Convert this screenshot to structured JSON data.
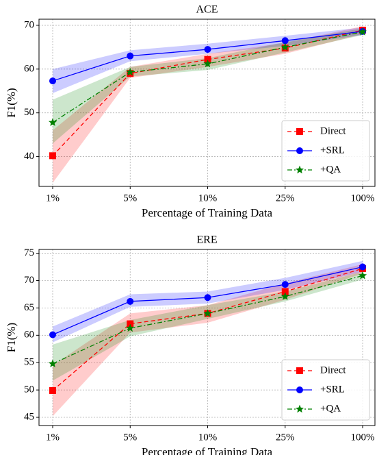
{
  "chart_data": [
    {
      "type": "line",
      "title": "ACE",
      "x_label": "Percentage of Training Data",
      "y_label": "F1(%)",
      "categories": [
        "1%",
        "5%",
        "10%",
        "25%",
        "100%"
      ],
      "ylim": [
        33.2,
        71.4
      ],
      "yticks": [
        40,
        50,
        60,
        70
      ],
      "grid": true,
      "legend": "lower right",
      "series": [
        {
          "name": "Direct",
          "color": "#ff0000",
          "marker": "square",
          "linestyle": "dashed",
          "values": [
            40.2,
            59.0,
            62.2,
            64.8,
            68.9
          ],
          "lower": [
            34.0,
            58.0,
            60.5,
            63.5,
            68.0
          ],
          "upper": [
            46.0,
            60.5,
            63.5,
            66.0,
            69.8
          ]
        },
        {
          "name": "+SRL",
          "color": "#0000ff",
          "marker": "circle",
          "linestyle": "solid",
          "values": [
            57.3,
            63.0,
            64.5,
            66.5,
            68.6
          ],
          "lower": [
            54.5,
            61.8,
            63.5,
            65.3,
            67.8
          ],
          "upper": [
            60.0,
            64.3,
            65.8,
            67.6,
            69.5
          ]
        },
        {
          "name": "+QA",
          "color": "#008000",
          "marker": "star",
          "linestyle": "dashdot",
          "values": [
            47.8,
            59.3,
            61.2,
            65.0,
            68.5
          ],
          "lower": [
            43.0,
            58.3,
            59.8,
            63.8,
            67.8
          ],
          "upper": [
            53.0,
            60.5,
            62.5,
            66.2,
            69.3
          ]
        }
      ]
    },
    {
      "type": "line",
      "title": "ERE",
      "x_label": "Percentage of Training Data",
      "y_label": "F1(%)",
      "categories": [
        "1%",
        "5%",
        "10%",
        "25%",
        "100%"
      ],
      "ylim": [
        43.5,
        75.7
      ],
      "yticks": [
        45,
        50,
        55,
        60,
        65,
        70,
        75
      ],
      "grid": true,
      "legend": "lower right",
      "series": [
        {
          "name": "Direct",
          "color": "#ff0000",
          "marker": "square",
          "linestyle": "dashed",
          "values": [
            49.9,
            62.1,
            64.0,
            68.0,
            72.2
          ],
          "lower": [
            45.2,
            60.5,
            62.3,
            66.5,
            71.3
          ],
          "upper": [
            54.5,
            64.0,
            65.5,
            69.5,
            73.0
          ]
        },
        {
          "name": "+SRL",
          "color": "#0000ff",
          "marker": "circle",
          "linestyle": "solid",
          "values": [
            60.1,
            66.2,
            66.9,
            69.3,
            72.5
          ],
          "lower": [
            58.7,
            65.2,
            65.8,
            68.3,
            71.6
          ],
          "upper": [
            61.6,
            67.5,
            68.0,
            70.5,
            73.6
          ]
        },
        {
          "name": "+QA",
          "color": "#008000",
          "marker": "star",
          "linestyle": "dashdot",
          "values": [
            54.8,
            61.3,
            64.0,
            67.1,
            70.9
          ],
          "lower": [
            51.7,
            59.8,
            63.0,
            66.2,
            70.2
          ],
          "upper": [
            58.3,
            62.8,
            65.5,
            68.0,
            71.6
          ]
        }
      ]
    }
  ]
}
